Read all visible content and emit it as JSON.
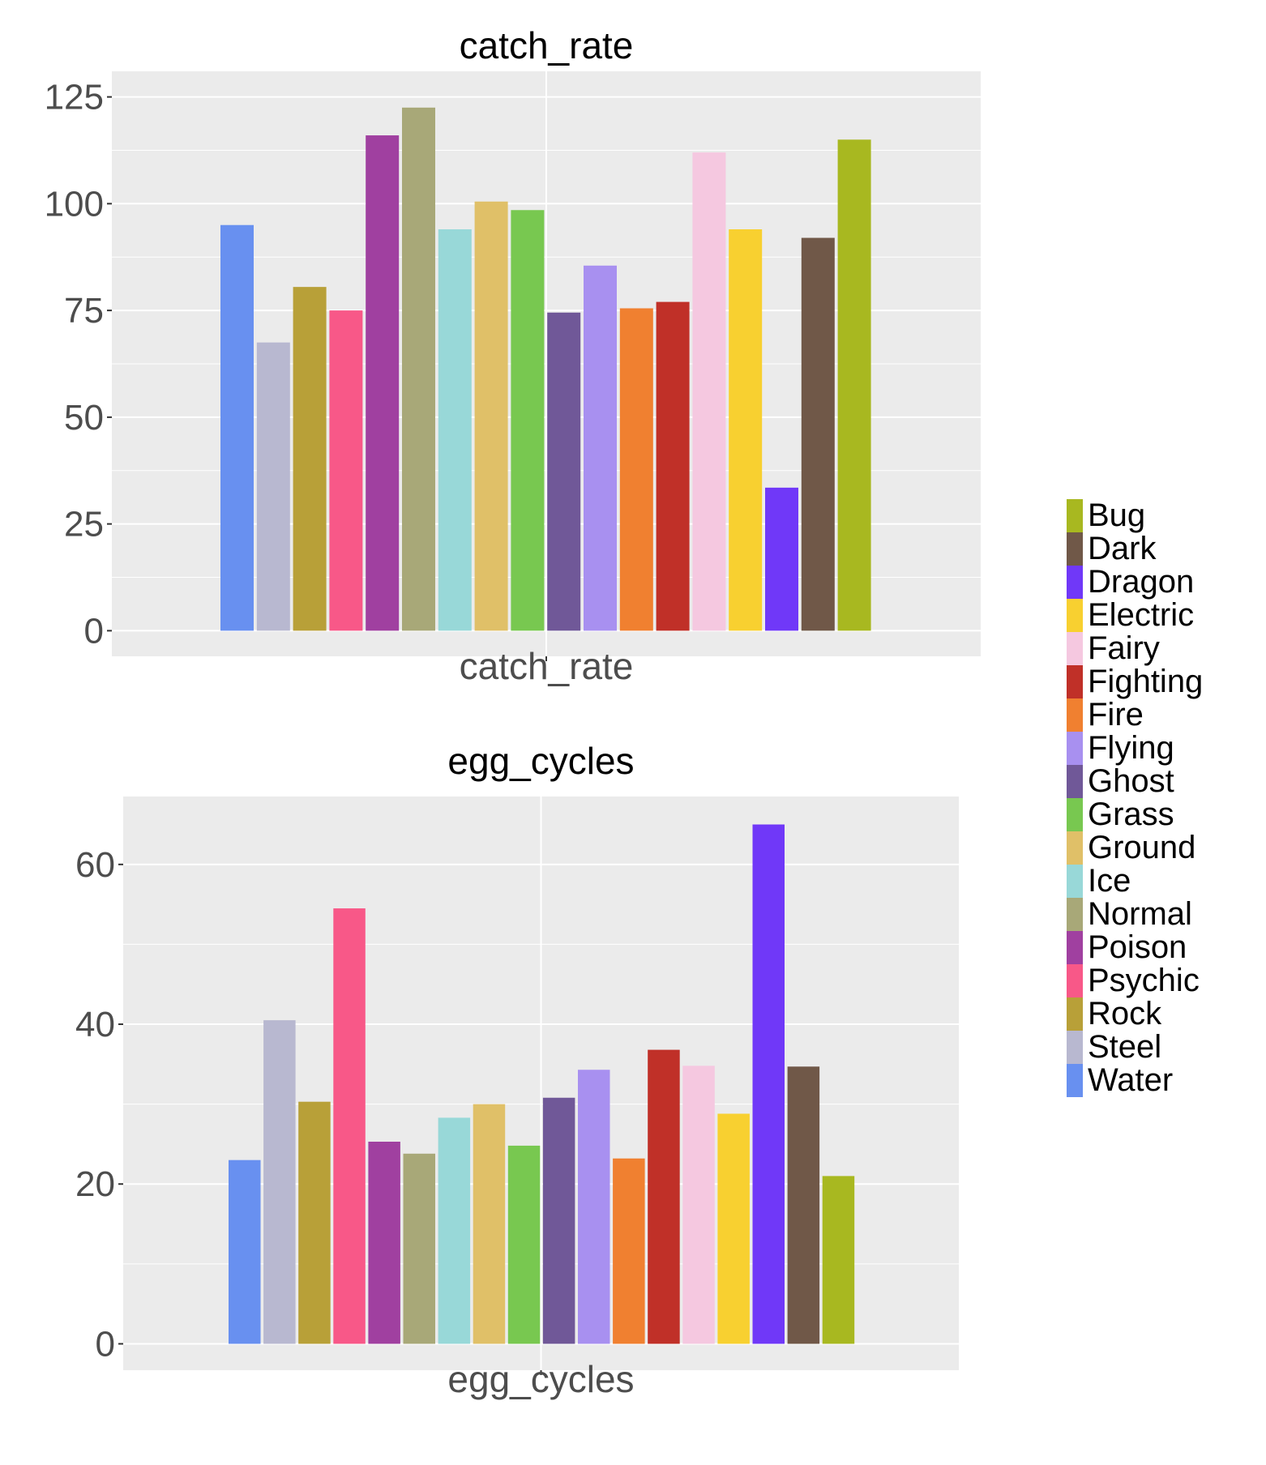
{
  "chart_data": [
    {
      "type": "bar",
      "title": "catch_rate",
      "xlabel": "catch_rate",
      "ylabel": "",
      "ylim": [
        -6,
        131
      ],
      "yticks": [
        0,
        25,
        50,
        75,
        100,
        125
      ],
      "yticklabels": [
        "0",
        "25",
        "50",
        "75",
        "100",
        "125"
      ],
      "categories": [
        "Water",
        "Steel",
        "Rock",
        "Psychic",
        "Poison",
        "Normal",
        "Ice",
        "Ground",
        "Grass",
        "Ghost",
        "Flying",
        "Fire",
        "Fighting",
        "Fairy",
        "Electric",
        "Dragon",
        "Dark",
        "Bug"
      ],
      "values": [
        95,
        67.5,
        80.5,
        75,
        116,
        122.5,
        94,
        100.5,
        98.5,
        74.5,
        85.5,
        75.5,
        77,
        112,
        94,
        33.5,
        92,
        115
      ],
      "grid": true
    },
    {
      "type": "bar",
      "title": "egg_cycles",
      "xlabel": "egg_cycles",
      "ylabel": "",
      "ylim": [
        -3.3,
        68.5
      ],
      "yticks": [
        0,
        20,
        40,
        60
      ],
      "yticklabels": [
        "0",
        "20",
        "40",
        "60"
      ],
      "categories": [
        "Water",
        "Steel",
        "Rock",
        "Psychic",
        "Poison",
        "Normal",
        "Ice",
        "Ground",
        "Grass",
        "Ghost",
        "Flying",
        "Fire",
        "Fighting",
        "Fairy",
        "Electric",
        "Dragon",
        "Dark",
        "Bug"
      ],
      "values": [
        23,
        40.5,
        30.3,
        54.5,
        25.3,
        23.8,
        28.3,
        30,
        24.8,
        30.8,
        34.3,
        23.2,
        36.8,
        34.8,
        28.8,
        65,
        34.7,
        21
      ],
      "grid": true
    }
  ],
  "legend": {
    "placement": "right",
    "items": [
      {
        "label": "Bug",
        "color": "#A8B820"
      },
      {
        "label": "Dark",
        "color": "#705848"
      },
      {
        "label": "Dragon",
        "color": "#7038F8"
      },
      {
        "label": "Electric",
        "color": "#F8D030"
      },
      {
        "label": "Fairy",
        "color": "#F5C8E0"
      },
      {
        "label": "Fighting",
        "color": "#C03028"
      },
      {
        "label": "Fire",
        "color": "#F08030"
      },
      {
        "label": "Flying",
        "color": "#A890F0"
      },
      {
        "label": "Ghost",
        "color": "#705898"
      },
      {
        "label": "Grass",
        "color": "#78C850"
      },
      {
        "label": "Ground",
        "color": "#E0C068"
      },
      {
        "label": "Ice",
        "color": "#98D8D8"
      },
      {
        "label": "Normal",
        "color": "#A8A878"
      },
      {
        "label": "Poison",
        "color": "#A040A0"
      },
      {
        "label": "Psychic",
        "color": "#F85888"
      },
      {
        "label": "Rock",
        "color": "#B8A038"
      },
      {
        "label": "Steel",
        "color": "#B8B8D0"
      },
      {
        "label": "Water",
        "color": "#6890F0"
      }
    ]
  },
  "colors": {
    "panel_background": "#EBEBEB",
    "gridline": "#FFFFFF",
    "tick_text": "#4D4D4D"
  }
}
